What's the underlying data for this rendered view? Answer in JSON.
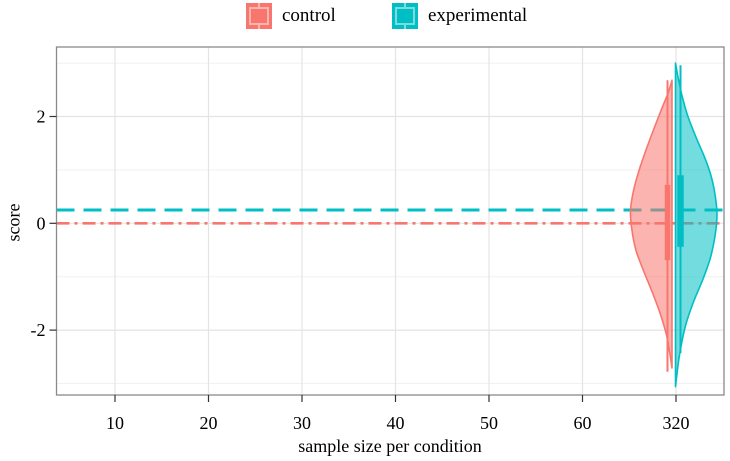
{
  "figure": {
    "background": "#ffffff",
    "panel_border_color": "#8a8a8a",
    "grid_major_color": "#e4e4e4",
    "grid_minor_color": "#f1f1f1",
    "tick_color": "#333333",
    "text_color": "#000000"
  },
  "legend": {
    "items": [
      {
        "label": "control",
        "color": "#F8766D",
        "light": "#FBB5AF"
      },
      {
        "label": "experimental",
        "color": "#00BFC4",
        "light": "#7ADCDE"
      }
    ]
  },
  "axes": {
    "x_title": "sample size per condition",
    "y_title": "score",
    "x_tick_labels": [
      "10",
      "20",
      "30",
      "40",
      "50",
      "60",
      "320"
    ],
    "y_tick_labels": [
      "-2",
      "0",
      "2"
    ],
    "y_tick_values": [
      -2,
      0,
      2
    ],
    "y_minor_values": [
      -3,
      -1,
      1,
      3
    ],
    "y_range": [
      -3.3,
      3.32
    ]
  },
  "chart_data": {
    "type": "violin",
    "title": "",
    "xlabel": "sample size per condition",
    "ylabel": "score",
    "x_categories": [
      "10",
      "20",
      "30",
      "40",
      "50",
      "60",
      "320"
    ],
    "violin_x_category": "320",
    "ylim": [
      -3.3,
      3.32
    ],
    "legend_position": "top",
    "grid": true,
    "series": [
      {
        "name": "control",
        "color": "#F8766D",
        "side": "left",
        "reference_line": {
          "y": 0.0,
          "linetype": "dotdash"
        },
        "interval_outer": [
          -2.78,
          2.68
        ],
        "interval_inner": [
          -0.69,
          0.72
        ],
        "violin_extent": [
          -2.71,
          2.68
        ],
        "density": [
          [
            2.68,
            0
          ],
          [
            2.45,
            0.09
          ],
          [
            2.1,
            0.27
          ],
          [
            1.7,
            0.47
          ],
          [
            1.3,
            0.66
          ],
          [
            0.95,
            0.81
          ],
          [
            0.6,
            0.93
          ],
          [
            0.25,
            1.0
          ],
          [
            -0.1,
            0.97
          ],
          [
            -0.5,
            0.87
          ],
          [
            -0.9,
            0.68
          ],
          [
            -1.3,
            0.47
          ],
          [
            -1.7,
            0.28
          ],
          [
            -2.1,
            0.13
          ],
          [
            -2.45,
            0.05
          ],
          [
            -2.71,
            0
          ]
        ]
      },
      {
        "name": "experimental",
        "color": "#00BFC4",
        "side": "right",
        "reference_line": {
          "y": 0.25,
          "linetype": "dashed"
        },
        "interval_outer": [
          -2.43,
          2.96
        ],
        "interval_inner": [
          -0.44,
          0.9
        ],
        "violin_extent": [
          -3.06,
          3.0
        ],
        "density": [
          [
            3.0,
            0
          ],
          [
            2.7,
            0.07
          ],
          [
            2.35,
            0.17
          ],
          [
            2.0,
            0.3
          ],
          [
            1.6,
            0.5
          ],
          [
            1.2,
            0.72
          ],
          [
            0.85,
            0.87
          ],
          [
            0.5,
            0.96
          ],
          [
            0.15,
            1.0
          ],
          [
            -0.25,
            0.95
          ],
          [
            -0.65,
            0.84
          ],
          [
            -1.05,
            0.66
          ],
          [
            -1.5,
            0.42
          ],
          [
            -1.95,
            0.23
          ],
          [
            -2.5,
            0.09
          ],
          [
            -3.06,
            0
          ]
        ]
      }
    ]
  }
}
